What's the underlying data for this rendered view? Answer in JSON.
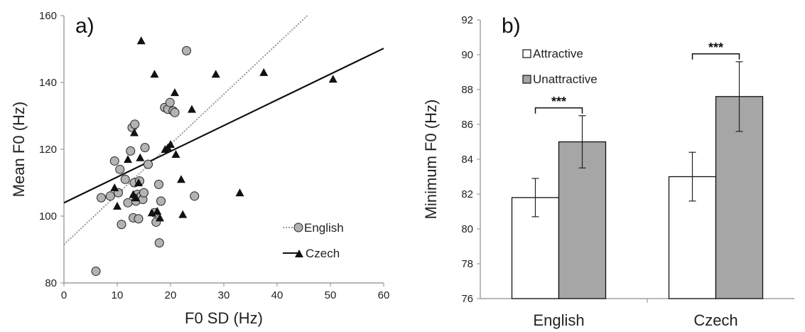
{
  "chart_data": [
    {
      "type": "scatter",
      "panel_label": "a)",
      "xlabel": "F0 SD (Hz)",
      "ylabel": "Mean F0 (Hz)",
      "xlim": [
        0,
        60
      ],
      "ylim": [
        80,
        160
      ],
      "xticks": [
        "0",
        "10",
        "20",
        "30",
        "40",
        "50",
        "60"
      ],
      "yticks": [
        "80",
        "100",
        "120",
        "140",
        "160"
      ],
      "grid": false,
      "legend_position": "bottom-right",
      "series": [
        {
          "name": "English",
          "marker": "circle",
          "color": "#b3b3b3",
          "points": [
            [
              6,
              83.5
            ],
            [
              7,
              105.5
            ],
            [
              8.7,
              106
            ],
            [
              9.5,
              116.5
            ],
            [
              10.2,
              107
            ],
            [
              10.5,
              114
            ],
            [
              10.8,
              97.5
            ],
            [
              11.5,
              111
            ],
            [
              12,
              104
            ],
            [
              12.5,
              119.5
            ],
            [
              12.8,
              126.5
            ],
            [
              13.2,
              110
            ],
            [
              13.3,
              127.5
            ],
            [
              13,
              99.5
            ],
            [
              13.5,
              104.5
            ],
            [
              13.8,
              106.5
            ],
            [
              14,
              99.2
            ],
            [
              14.2,
              110.5
            ],
            [
              14.5,
              106
            ],
            [
              14.8,
              105
            ],
            [
              15,
              107
            ],
            [
              15.2,
              120.5
            ],
            [
              15.8,
              115.5
            ],
            [
              17,
              101
            ],
            [
              17.3,
              98.2
            ],
            [
              17.8,
              109.5
            ],
            [
              17.9,
              92
            ],
            [
              18.2,
              104.5
            ],
            [
              18.9,
              132.5
            ],
            [
              19.5,
              132
            ],
            [
              19.9,
              134
            ],
            [
              20.5,
              131.5
            ],
            [
              20.8,
              131
            ],
            [
              23,
              149.5
            ],
            [
              24.5,
              106
            ]
          ],
          "trendline": {
            "style": "dotted",
            "color": "#999999",
            "intercept": 91.5,
            "slope": 1.5
          }
        },
        {
          "name": "Czech",
          "marker": "triangle",
          "color": "#111111",
          "points": [
            [
              9.5,
              108.5
            ],
            [
              10,
              103
            ],
            [
              12,
              117
            ],
            [
              13,
              106.5
            ],
            [
              13.2,
              125
            ],
            [
              13.5,
              105.5
            ],
            [
              14,
              110
            ],
            [
              14.3,
              117.5
            ],
            [
              14.5,
              152.5
            ],
            [
              16.5,
              101
            ],
            [
              17,
              142.5
            ],
            [
              17.5,
              101.5
            ],
            [
              18,
              99.5
            ],
            [
              19,
              120
            ],
            [
              19.5,
              120.5
            ],
            [
              20,
              121.5
            ],
            [
              20.8,
              137
            ],
            [
              21,
              118.5
            ],
            [
              22,
              111
            ],
            [
              22.3,
              100.5
            ],
            [
              24,
              132
            ],
            [
              28.5,
              142.5
            ],
            [
              33,
              107
            ],
            [
              37.5,
              143
            ],
            [
              50.5,
              141
            ]
          ],
          "trendline": {
            "style": "solid",
            "color": "#111111",
            "intercept": 104,
            "slope": 0.77
          }
        }
      ]
    },
    {
      "type": "bar",
      "panel_label": "b)",
      "ylabel": "Minimum F0 (Hz)",
      "xlabel": "",
      "categories": [
        "English",
        "Czech"
      ],
      "ylim": [
        76,
        92
      ],
      "yticks": [
        "76",
        "78",
        "80",
        "82",
        "84",
        "86",
        "88",
        "90",
        "92"
      ],
      "grid": false,
      "legend_position": "top-left",
      "series": [
        {
          "name": "Attractive",
          "color": "#ffffff",
          "values": [
            81.8,
            83.0
          ],
          "error": [
            [
              80.7,
              82.9
            ],
            [
              81.6,
              84.4
            ]
          ]
        },
        {
          "name": "Unattractive",
          "color": "#a6a6a6",
          "values": [
            85.0,
            87.6
          ],
          "error": [
            [
              83.5,
              86.5
            ],
            [
              85.6,
              89.6
            ]
          ]
        }
      ],
      "significance": [
        "***",
        "***"
      ]
    }
  ]
}
